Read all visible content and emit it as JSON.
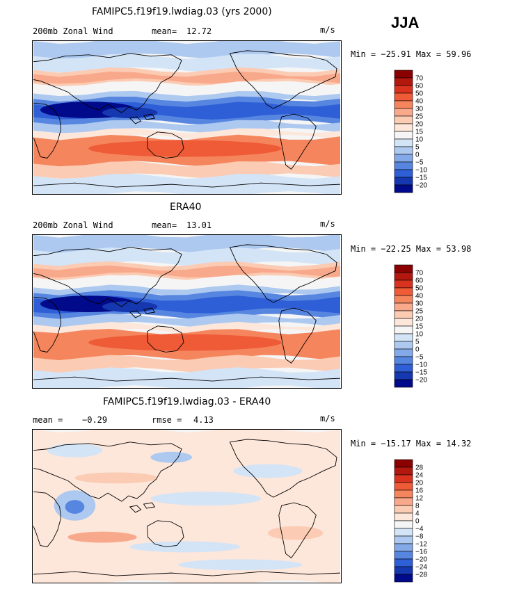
{
  "season": "JJA",
  "panels": [
    {
      "title": "FAMIPC5.f19f19.lwdiag.03 (yrs 2000)",
      "left_label": "200mb Zonal Wind",
      "stat1_label": "mean=",
      "stat1_value": "12.72",
      "units": "m/s",
      "minmax": "Min = −25.91 Max =  59.96"
    },
    {
      "title": "ERA40",
      "left_label": "200mb Zonal Wind",
      "stat1_label": "mean=",
      "stat1_value": "13.01",
      "units": "m/s",
      "minmax": "Min = −22.25 Max =  53.98"
    },
    {
      "title": "FAMIPC5.f19f19.lwdiag.03 - ERA40",
      "left_label": "mean =",
      "left_value": "−0.29",
      "stat1_label": "rmse =",
      "stat1_value": "4.13",
      "units": "m/s",
      "minmax": "Min = −15.17 Max =  14.32"
    }
  ],
  "chart_data": [
    {
      "type": "heatmap",
      "title": "FAMIPC5.f19f19.lwdiag.03 (yrs 2000)",
      "variable": "200mb Zonal Wind",
      "units": "m/s",
      "season": "JJA",
      "mean": 12.72,
      "min": -25.91,
      "max": 59.96,
      "colorbar_levels": [
        70,
        60,
        50,
        40,
        30,
        25,
        20,
        15,
        10,
        5,
        0,
        -5,
        -10,
        -15,
        -20
      ],
      "colorbar_colors": [
        "#8b0000",
        "#b2180e",
        "#d93320",
        "#ef5a37",
        "#f5855d",
        "#f9a98b",
        "#fbcbb3",
        "#fde6da",
        "#f5f5f5",
        "#d3e4f7",
        "#adc9f0",
        "#83a9e8",
        "#5786e0",
        "#2f5fd6",
        "#1537b0",
        "#000a8a"
      ]
    },
    {
      "type": "heatmap",
      "title": "ERA40",
      "variable": "200mb Zonal Wind",
      "units": "m/s",
      "season": "JJA",
      "mean": 13.01,
      "min": -22.25,
      "max": 53.98,
      "colorbar_levels": [
        70,
        60,
        50,
        40,
        30,
        25,
        20,
        15,
        10,
        5,
        0,
        -5,
        -10,
        -15,
        -20
      ],
      "colorbar_colors": [
        "#8b0000",
        "#b2180e",
        "#d93320",
        "#ef5a37",
        "#f5855d",
        "#f9a98b",
        "#fbcbb3",
        "#fde6da",
        "#f5f5f5",
        "#d3e4f7",
        "#adc9f0",
        "#83a9e8",
        "#5786e0",
        "#2f5fd6",
        "#1537b0",
        "#000a8a"
      ]
    },
    {
      "type": "heatmap",
      "title": "FAMIPC5.f19f19.lwdiag.03 - ERA40",
      "units": "m/s",
      "season": "JJA",
      "mean": -0.29,
      "rmse": 4.13,
      "min": -15.17,
      "max": 14.32,
      "colorbar_levels": [
        28,
        24,
        20,
        16,
        12,
        8,
        4,
        0,
        -4,
        -8,
        -12,
        -16,
        -20,
        -24,
        -28
      ],
      "colorbar_colors": [
        "#8b0000",
        "#b2180e",
        "#d93320",
        "#ef5a37",
        "#f5855d",
        "#f9a98b",
        "#fbcbb3",
        "#fde6da",
        "#f5f5f5",
        "#d3e4f7",
        "#adc9f0",
        "#83a9e8",
        "#5786e0",
        "#2f5fd6",
        "#1537b0",
        "#000a8a"
      ]
    }
  ]
}
